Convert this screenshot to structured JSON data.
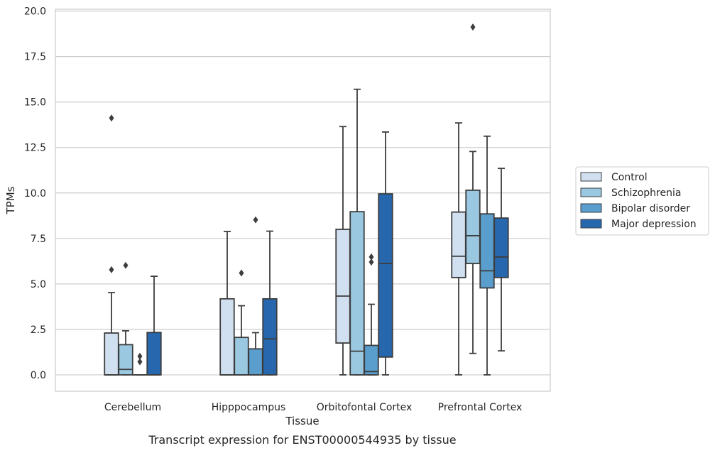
{
  "caption": "Transcript expression for ENST00000544935 by tissue",
  "chart_data": {
    "type": "box",
    "xlabel": "Tissue",
    "ylabel": "TPMs",
    "ylim": [
      -0.9,
      20.1
    ],
    "yticks": [
      0.0,
      2.5,
      5.0,
      7.5,
      10.0,
      12.5,
      15.0,
      17.5,
      20.0
    ],
    "ytick_labels": [
      "0.0",
      "2.5",
      "5.0",
      "7.5",
      "10.0",
      "12.5",
      "15.0",
      "17.5",
      "20.0"
    ],
    "grid": "horizontal",
    "legend_position": "right",
    "categories": [
      "Cerebellum",
      "Hipppocampus",
      "Orbitofontal Cortex",
      "Prefrontal Cortex"
    ],
    "series": [
      {
        "name": "Control",
        "color": "#d1e0f1",
        "boxes": [
          {
            "whislo": 0.0,
            "q1": 0.0,
            "med": 0.0,
            "q3": 2.3,
            "whishi": 4.52,
            "fliers": [
              5.78,
              14.12
            ]
          },
          {
            "whislo": 0.0,
            "q1": 0.0,
            "med": 0.0,
            "q3": 4.18,
            "whishi": 7.88,
            "fliers": []
          },
          {
            "whislo": 0.0,
            "q1": 1.75,
            "med": 4.33,
            "q3": 8.0,
            "whishi": 13.65,
            "fliers": []
          },
          {
            "whislo": 0.0,
            "q1": 5.35,
            "med": 6.52,
            "q3": 8.95,
            "whishi": 13.85,
            "fliers": []
          }
        ]
      },
      {
        "name": "Schizophrenia",
        "color": "#9ac8e0",
        "boxes": [
          {
            "whislo": 0.0,
            "q1": 0.0,
            "med": 0.3,
            "q3": 1.66,
            "whishi": 2.42,
            "fliers": [
              6.02
            ]
          },
          {
            "whislo": 0.0,
            "q1": 0.0,
            "med": 0.0,
            "q3": 2.06,
            "whishi": 3.8,
            "fliers": [
              5.6
            ]
          },
          {
            "whislo": 0.0,
            "q1": 0.0,
            "med": 1.3,
            "q3": 8.97,
            "whishi": 15.7,
            "fliers": []
          },
          {
            "whislo": 1.18,
            "q1": 6.12,
            "med": 7.65,
            "q3": 10.15,
            "whishi": 12.28,
            "fliers": [
              19.12
            ]
          }
        ]
      },
      {
        "name": "Bipolar disorder",
        "color": "#5a9ecd",
        "boxes": [
          {
            "whislo": 0.0,
            "q1": 0.0,
            "med": 0.0,
            "q3": 0.0,
            "whishi": 0.0,
            "fliers": [
              0.72,
              1.02
            ]
          },
          {
            "whislo": 0.0,
            "q1": 0.0,
            "med": 0.0,
            "q3": 1.43,
            "whishi": 2.32,
            "fliers": [
              8.52
            ]
          },
          {
            "whislo": 0.0,
            "q1": 0.0,
            "med": 0.18,
            "q3": 1.62,
            "whishi": 3.88,
            "fliers": [
              6.2,
              6.48
            ]
          },
          {
            "whislo": 0.0,
            "q1": 4.78,
            "med": 5.72,
            "q3": 8.85,
            "whishi": 13.12,
            "fliers": []
          }
        ]
      },
      {
        "name": "Major depression",
        "color": "#2767ad",
        "boxes": [
          {
            "whislo": 0.0,
            "q1": 0.0,
            "med": 0.0,
            "q3": 2.33,
            "whishi": 5.42,
            "fliers": []
          },
          {
            "whislo": 0.0,
            "q1": 0.0,
            "med": 1.98,
            "q3": 4.18,
            "whishi": 7.9,
            "fliers": []
          },
          {
            "whislo": 0.0,
            "q1": 0.98,
            "med": 6.12,
            "q3": 9.95,
            "whishi": 13.35,
            "fliers": []
          },
          {
            "whislo": 1.32,
            "q1": 5.35,
            "med": 6.48,
            "q3": 8.62,
            "whishi": 11.35,
            "fliers": []
          }
        ]
      }
    ]
  }
}
